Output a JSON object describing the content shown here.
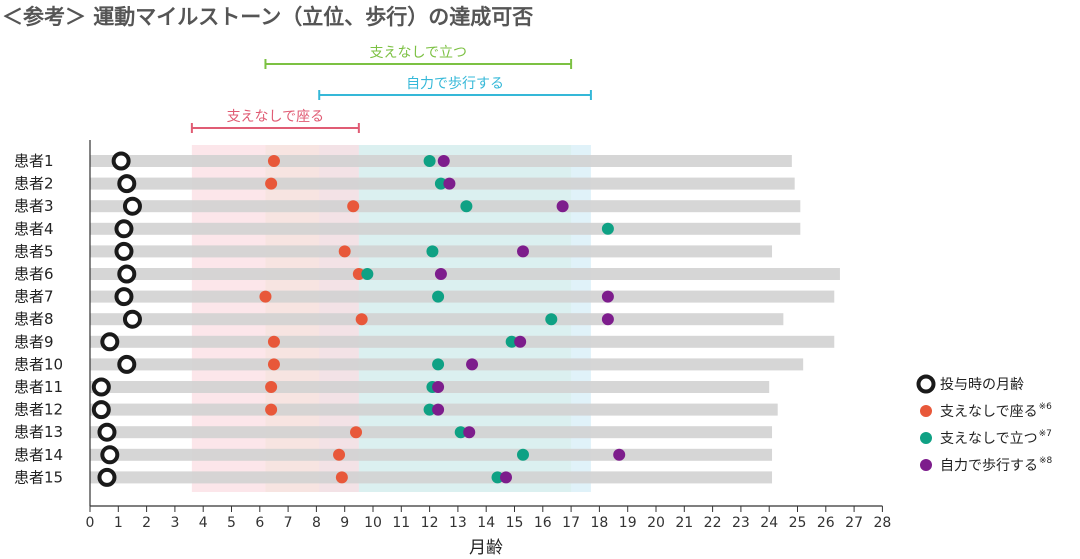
{
  "title": "＜参考＞ 運動マイルストーン（立位、歩行）の達成可否",
  "chart_data": {
    "type": "scatter",
    "title": "＜参考＞ 運動マイルストーン（立位、歩行）の達成可否",
    "xlabel": "月齢",
    "xlim": [
      0,
      28
    ],
    "xticks": [
      0,
      1,
      2,
      3,
      4,
      5,
      6,
      7,
      8,
      9,
      10,
      11,
      12,
      13,
      14,
      15,
      16,
      17,
      18,
      19,
      20,
      21,
      22,
      23,
      24,
      25,
      26,
      27,
      28
    ],
    "patients": [
      "患者1",
      "患者2",
      "患者3",
      "患者4",
      "患者5",
      "患者6",
      "患者7",
      "患者8",
      "患者9",
      "患者10",
      "患者11",
      "患者12",
      "患者13",
      "患者14",
      "患者15"
    ],
    "followup_end": [
      24.8,
      24.9,
      25.1,
      25.1,
      24.1,
      26.5,
      26.3,
      24.5,
      26.3,
      25.2,
      24.0,
      24.3,
      24.1,
      24.1,
      24.1
    ],
    "series": [
      {
        "name": "投与時の月齢",
        "marker": "ring",
        "color": "#1a1a1a",
        "values": [
          1.1,
          1.3,
          1.5,
          1.2,
          1.2,
          1.3,
          1.2,
          1.5,
          0.7,
          1.3,
          0.4,
          0.4,
          0.6,
          0.7,
          0.6
        ]
      },
      {
        "name": "支えなしで座る",
        "sup": "※6",
        "marker": "dot",
        "color": "#e8583a",
        "values": [
          6.5,
          6.4,
          9.3,
          null,
          9.0,
          9.5,
          6.2,
          9.6,
          6.5,
          6.5,
          6.4,
          6.4,
          9.4,
          8.8,
          8.9
        ]
      },
      {
        "name": "支えなしで立つ",
        "sup": "※7",
        "marker": "dot",
        "color": "#0fa184",
        "values": [
          12.0,
          12.4,
          13.3,
          18.3,
          12.1,
          9.8,
          12.3,
          16.3,
          14.9,
          12.3,
          12.1,
          12.0,
          13.1,
          15.3,
          14.4
        ]
      },
      {
        "name": "自力で歩行する",
        "sup": "※8",
        "marker": "dot",
        "color": "#7d1d8c",
        "values": [
          12.5,
          12.7,
          16.7,
          null,
          15.3,
          12.4,
          18.3,
          18.3,
          15.2,
          13.5,
          12.3,
          12.3,
          13.4,
          18.7,
          14.7
        ]
      }
    ],
    "windows": [
      {
        "label": "支えなしで座る",
        "range": [
          3.6,
          9.5
        ],
        "color": "#e05c74",
        "fill": "#fbdde3"
      },
      {
        "label": "支えなしで立つ",
        "range": [
          6.2,
          17.0
        ],
        "color": "#7cc143",
        "fill": "#e6f3cf"
      },
      {
        "label": "自力で歩行する",
        "range": [
          8.1,
          17.7
        ],
        "color": "#35b8d8",
        "fill": "#d5eef7"
      }
    ]
  }
}
